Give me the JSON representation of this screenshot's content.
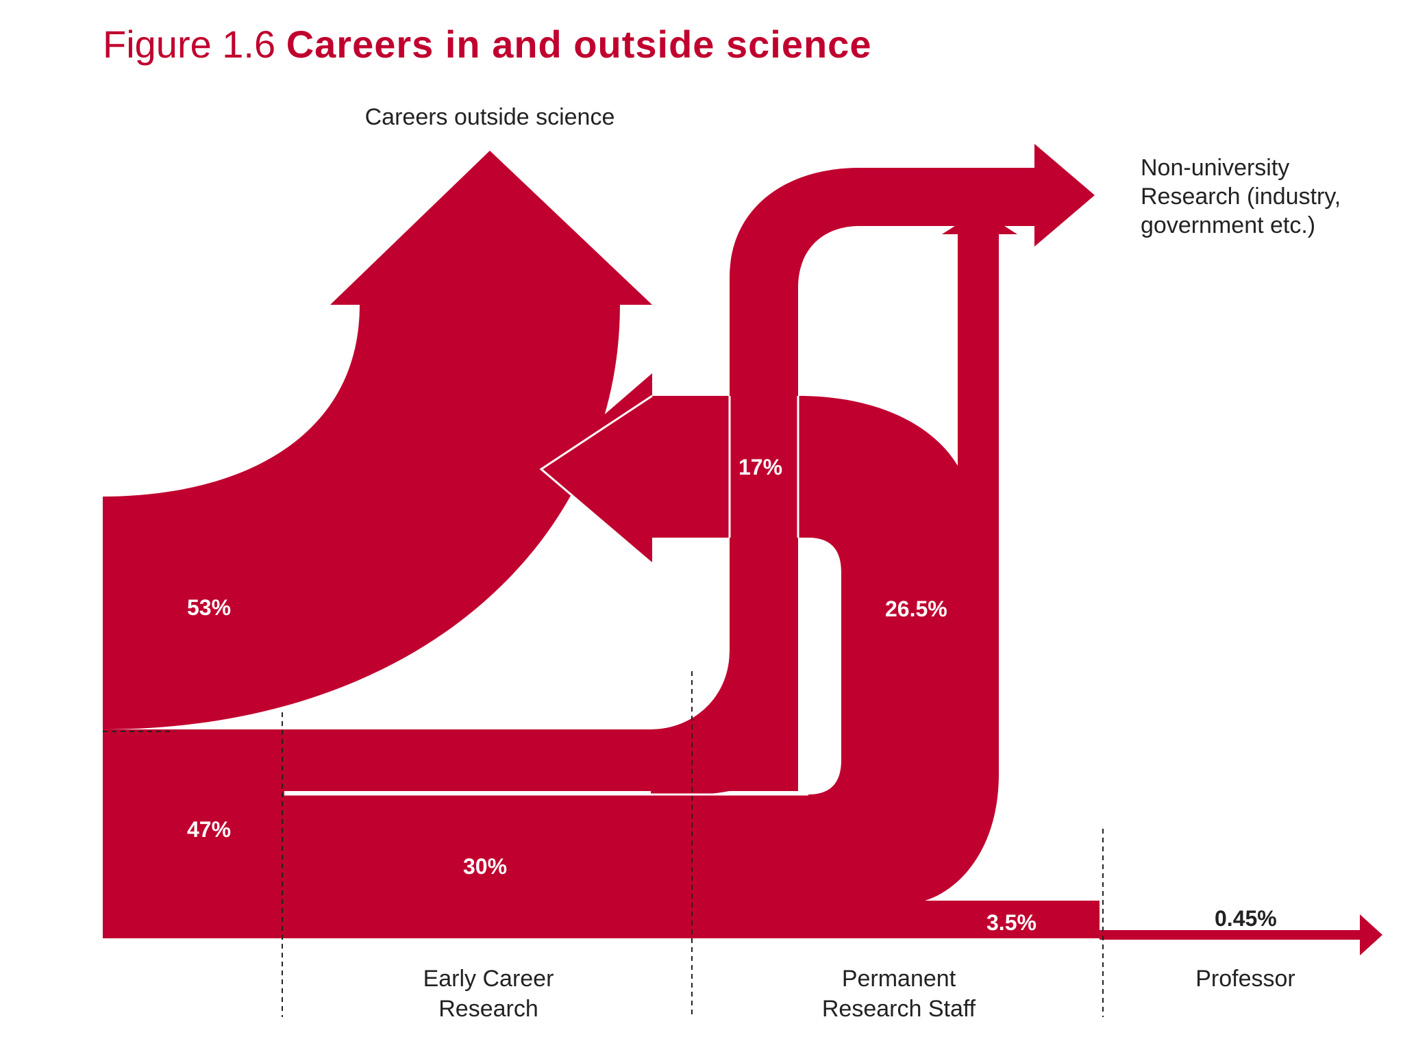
{
  "title": {
    "figure_number": "Figure 1.6",
    "text": "Careers in and outside science"
  },
  "colors": {
    "flow": "#c0002e",
    "text": "#222222",
    "label_on_flow": "#ffffff"
  },
  "destinations": {
    "outside": "Careers outside science",
    "non_university": [
      "Non-university",
      "Research (industry,",
      "government etc.)"
    ]
  },
  "stages": {
    "early_career": [
      "Early Career",
      "Research"
    ],
    "permanent_staff": [
      "Permanent",
      "Research Staff"
    ],
    "professor": "Professor"
  },
  "flows": {
    "outside_from_start": "53%",
    "continue_from_start": "47%",
    "to_non_university": "17%",
    "to_permanent_staff": "30%",
    "from_permanent_staff": "26.5%",
    "to_professor_stage": "3.5%",
    "professor": "0.45%"
  }
}
